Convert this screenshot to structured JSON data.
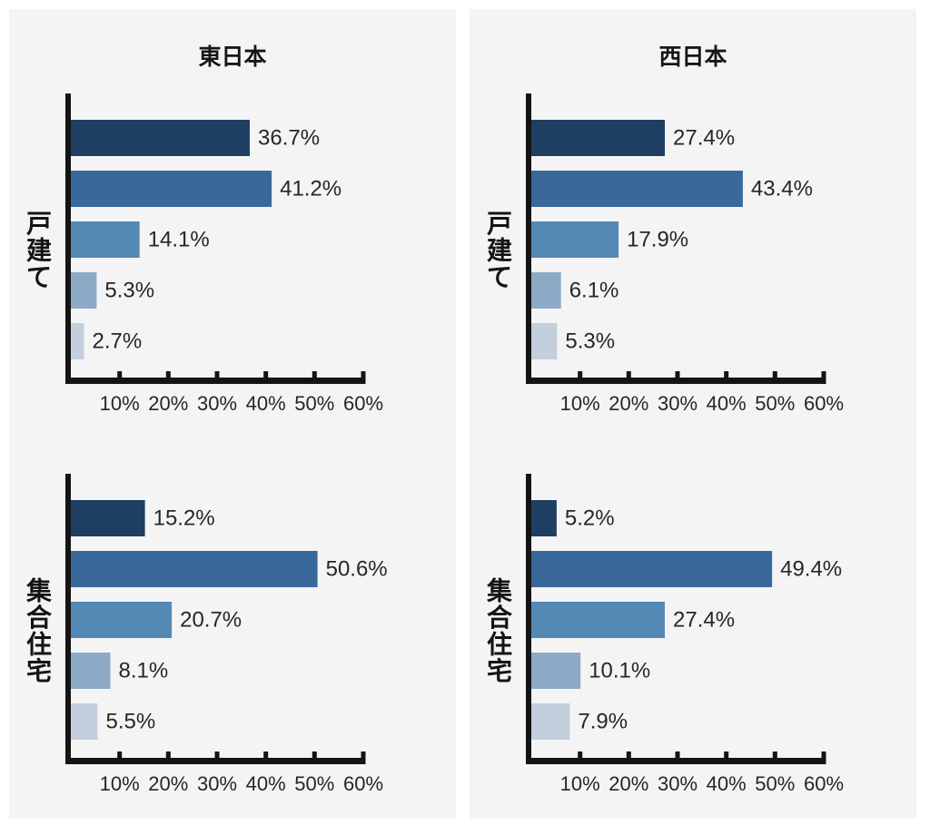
{
  "page": {
    "background": "#ffffff",
    "panel_background": "#f4f4f5"
  },
  "chart_data": {
    "type": "bar",
    "orientation": "horizontal",
    "unit": "%",
    "grid": false,
    "legend": false,
    "xlim": [
      0,
      60
    ],
    "x_ticks": [
      "10%",
      "20%",
      "30%",
      "40%",
      "50%",
      "60%"
    ],
    "bar_colors": [
      "#1f3f62",
      "#38699a",
      "#5389b4",
      "#8caac5",
      "#c3cfdc"
    ],
    "axis_color": "#141414",
    "label_color": "#262626",
    "panels": [
      {
        "title": "東日本",
        "charts": [
          {
            "group": "戸建て",
            "values": [
              36.7,
              41.2,
              14.1,
              5.3,
              2.7
            ],
            "value_labels": [
              "36.7%",
              "41.2%",
              "14.1%",
              "5.3%",
              "2.7%"
            ]
          },
          {
            "group": "集合住宅",
            "values": [
              15.2,
              50.6,
              20.7,
              8.1,
              5.5
            ],
            "value_labels": [
              "15.2%",
              "50.6%",
              "20.7%",
              "8.1%",
              "5.5%"
            ]
          }
        ]
      },
      {
        "title": "西日本",
        "charts": [
          {
            "group": "戸建て",
            "values": [
              27.4,
              43.4,
              17.9,
              6.1,
              5.3
            ],
            "value_labels": [
              "27.4%",
              "43.4%",
              "17.9%",
              "6.1%",
              "5.3%"
            ]
          },
          {
            "group": "集合住宅",
            "values": [
              5.2,
              49.4,
              27.4,
              10.1,
              7.9
            ],
            "value_labels": [
              "5.2%",
              "49.4%",
              "27.4%",
              "10.1%",
              "7.9%"
            ]
          }
        ]
      }
    ]
  }
}
